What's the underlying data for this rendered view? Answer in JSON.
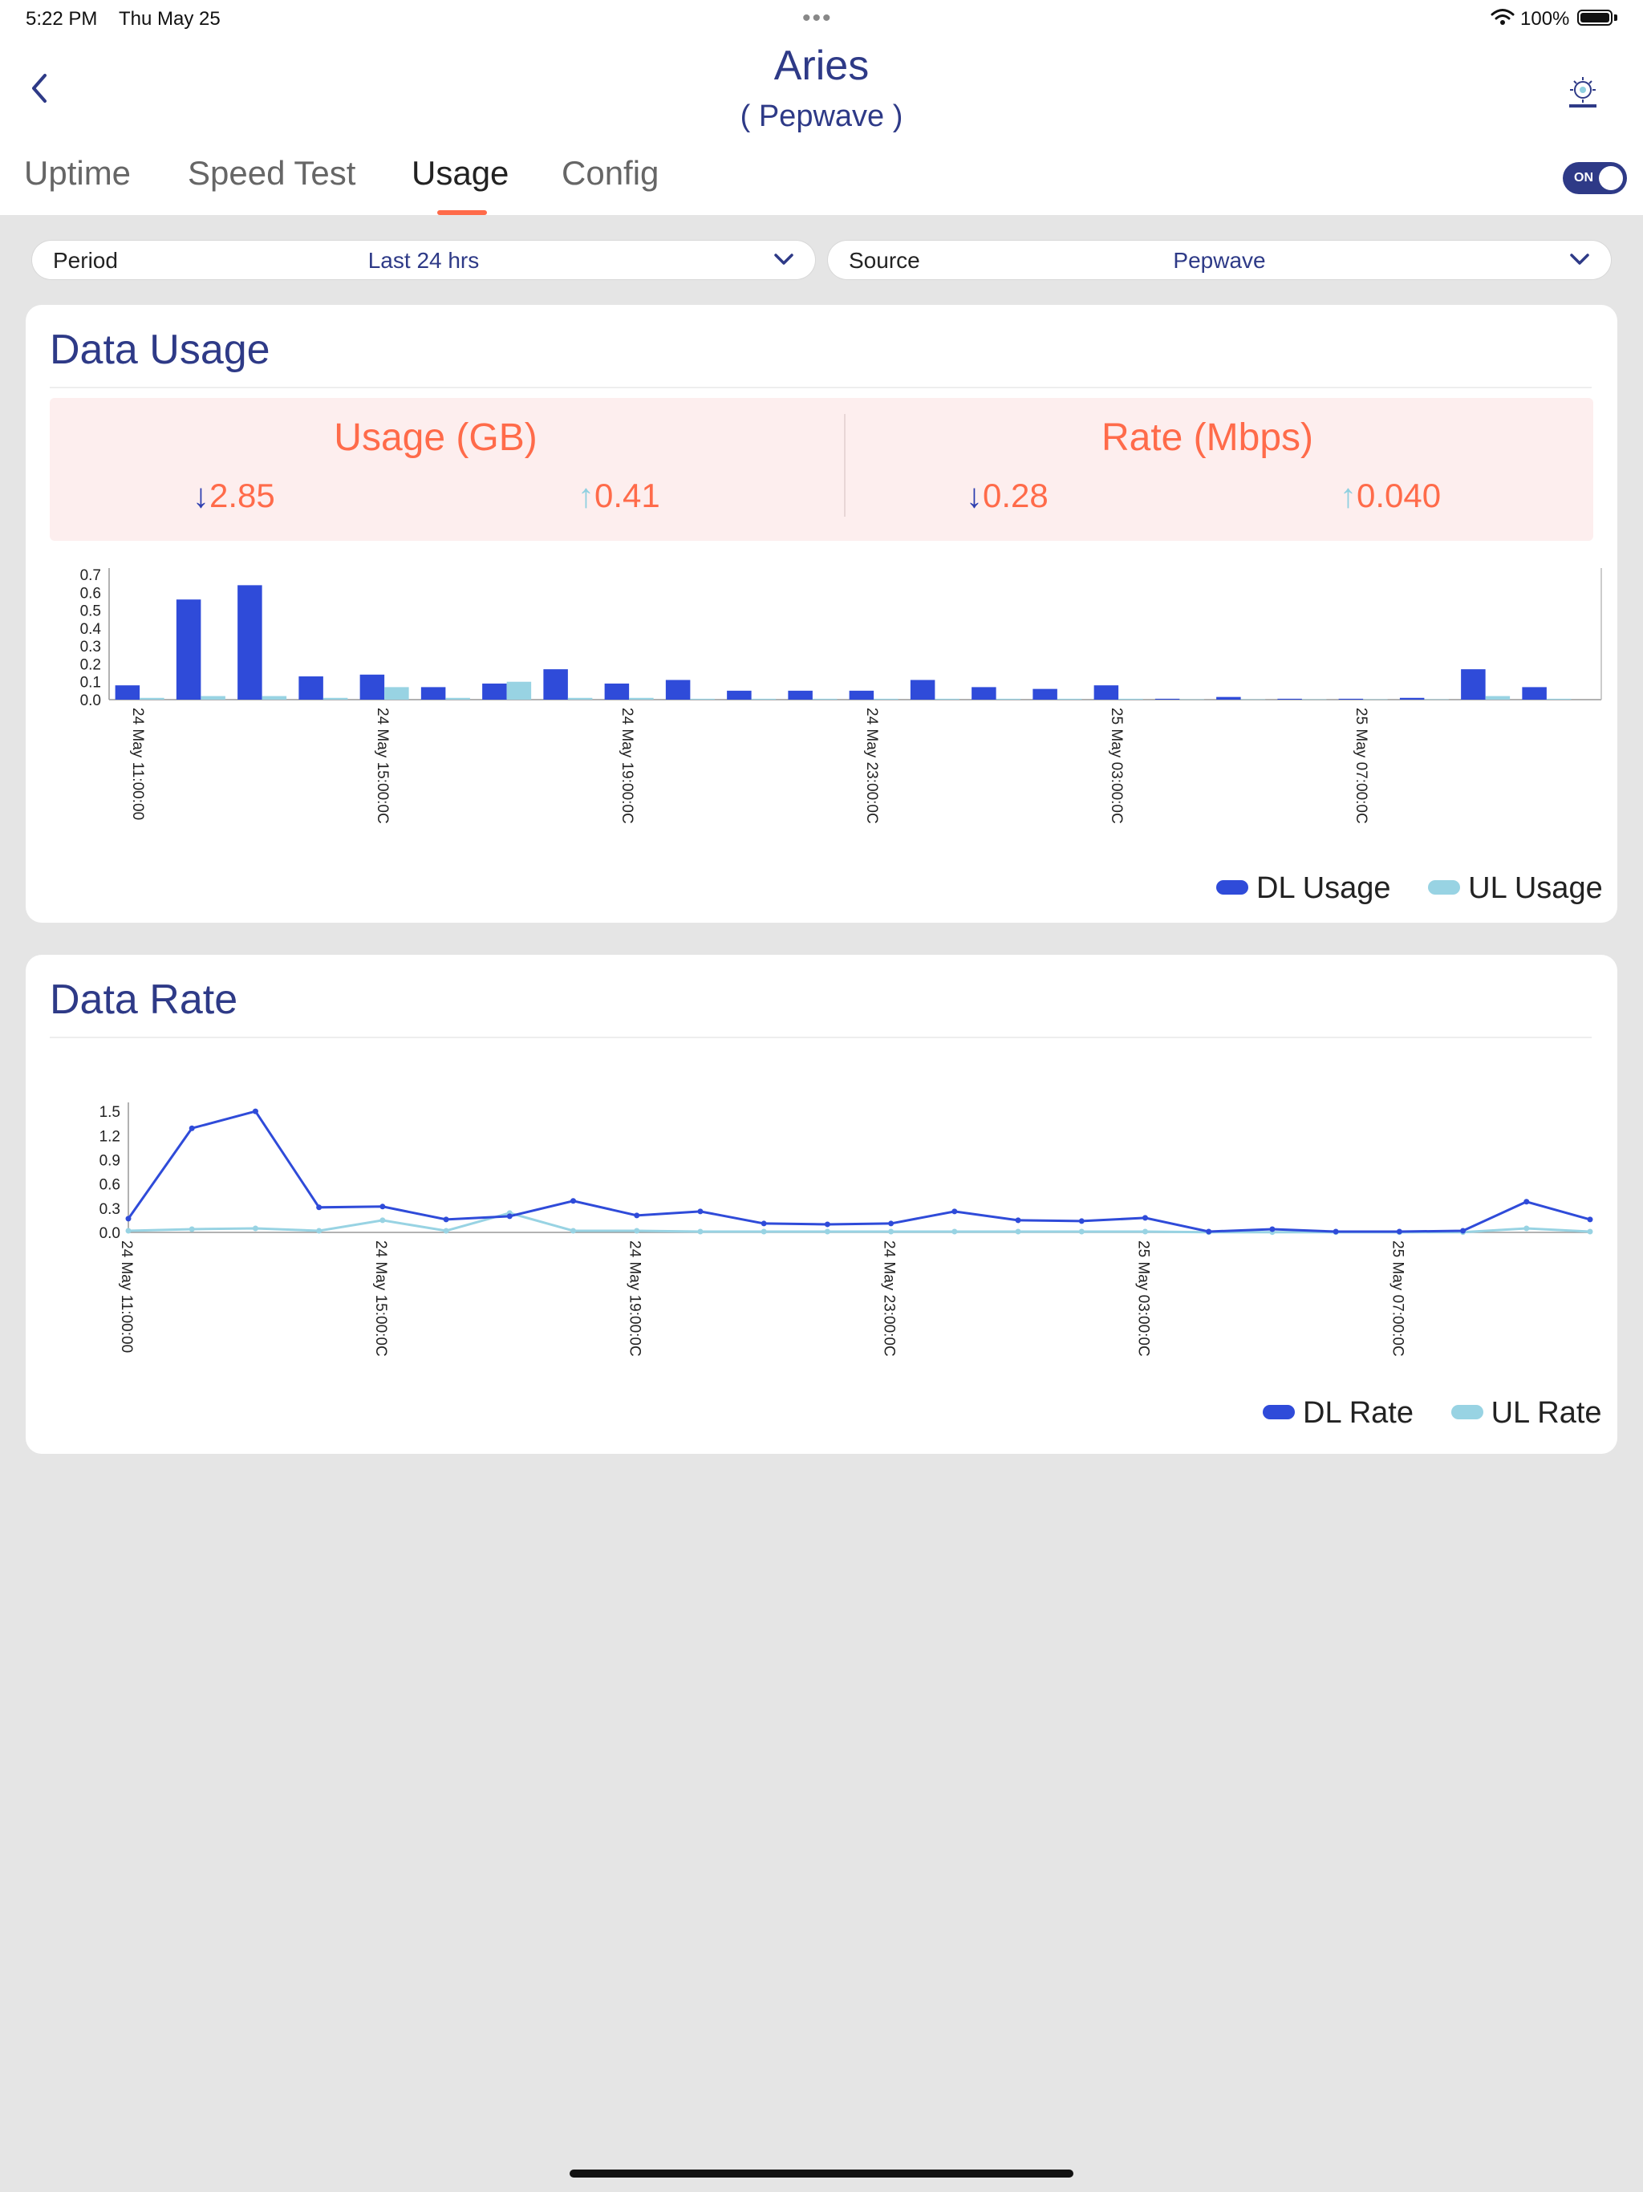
{
  "status": {
    "time": "5:22 PM",
    "date": "Thu May 25",
    "dots": "•••",
    "battery_pct": "100%"
  },
  "header": {
    "title": "Aries",
    "subtitle": "( Pepwave )",
    "back_icon": "chevron-left-icon",
    "logo_icon": "app-logo-icon"
  },
  "tabs": [
    {
      "label": "Uptime",
      "active": false
    },
    {
      "label": "Speed Test",
      "active": false
    },
    {
      "label": "Usage",
      "active": true
    },
    {
      "label": "Config",
      "active": false
    }
  ],
  "toggle": {
    "label": "ON",
    "state": true
  },
  "filters": {
    "period": {
      "label": "Period",
      "value": "Last 24 hrs"
    },
    "source": {
      "label": "Source",
      "value": "Pepwave"
    }
  },
  "usage_card": {
    "title": "Data Usage",
    "summary": {
      "usage_title": "Usage (GB)",
      "usage_dl": "2.85",
      "usage_ul": "0.41",
      "rate_title": "Rate (Mbps)",
      "rate_dl": "0.28",
      "rate_ul": "0.040"
    },
    "legend": {
      "dl": "DL Usage",
      "ul": "UL Usage"
    }
  },
  "rate_card": {
    "title": "Data Rate",
    "legend": {
      "dl": "DL Rate",
      "ul": "UL Rate"
    }
  },
  "colors": {
    "dl": "#2f4bd9",
    "ul": "#98d3e3",
    "accent": "#ff6b4a",
    "brand": "#2e3a87"
  },
  "chart_data": [
    {
      "type": "bar",
      "yticks": [
        "0.0",
        "0.1",
        "0.2",
        "0.3",
        "0.4",
        "0.5",
        "0.6",
        "0.7"
      ],
      "ylim": [
        0,
        0.7
      ],
      "xtick_labels": [
        "24 May 11:00:00",
        "24 May 15:00:0C",
        "24 May 19:00:0C",
        "24 May 23:00:0C",
        "25 May 03:00:0C",
        "25 May 07:00:0C"
      ],
      "xtick_index": [
        0,
        4,
        8,
        12,
        16,
        20
      ],
      "series": [
        {
          "name": "DL Usage",
          "values": [
            0.08,
            0.56,
            0.64,
            0.13,
            0.14,
            0.07,
            0.09,
            0.17,
            0.09,
            0.11,
            0.05,
            0.05,
            0.05,
            0.11,
            0.07,
            0.06,
            0.08,
            0.005,
            0.015,
            0.005,
            0.005,
            0.01,
            0.17,
            0.07
          ]
        },
        {
          "name": "UL Usage",
          "values": [
            0.01,
            0.02,
            0.02,
            0.01,
            0.07,
            0.01,
            0.1,
            0.01,
            0.01,
            0.005,
            0.005,
            0.005,
            0.005,
            0.005,
            0.005,
            0.005,
            0.005,
            0.002,
            0.002,
            0.002,
            0.002,
            0.002,
            0.02,
            0.005
          ]
        }
      ]
    },
    {
      "type": "line",
      "yticks": [
        "0.0",
        "0.3",
        "0.6",
        "0.9",
        "1.2",
        "1.5"
      ],
      "ylim": [
        0,
        1.65
      ],
      "xtick_labels": [
        "24 May 11:00:00",
        "24 May 15:00:0C",
        "24 May 19:00:0C",
        "24 May 23:00:0C",
        "25 May 03:00:0C",
        "25 May 07:00:0C"
      ],
      "xtick_index": [
        0,
        4,
        8,
        12,
        16,
        20
      ],
      "series": [
        {
          "name": "DL Rate",
          "values": [
            0.17,
            1.29,
            1.5,
            0.31,
            0.32,
            0.16,
            0.2,
            0.39,
            0.21,
            0.26,
            0.11,
            0.1,
            0.11,
            0.26,
            0.15,
            0.14,
            0.18,
            0.01,
            0.04,
            0.01,
            0.01,
            0.02,
            0.38,
            0.16
          ]
        },
        {
          "name": "UL Rate",
          "values": [
            0.02,
            0.04,
            0.05,
            0.02,
            0.15,
            0.02,
            0.24,
            0.02,
            0.02,
            0.01,
            0.01,
            0.01,
            0.01,
            0.01,
            0.01,
            0.01,
            0.01,
            0.003,
            0.003,
            0.003,
            0.003,
            0.003,
            0.05,
            0.01
          ]
        }
      ]
    }
  ]
}
